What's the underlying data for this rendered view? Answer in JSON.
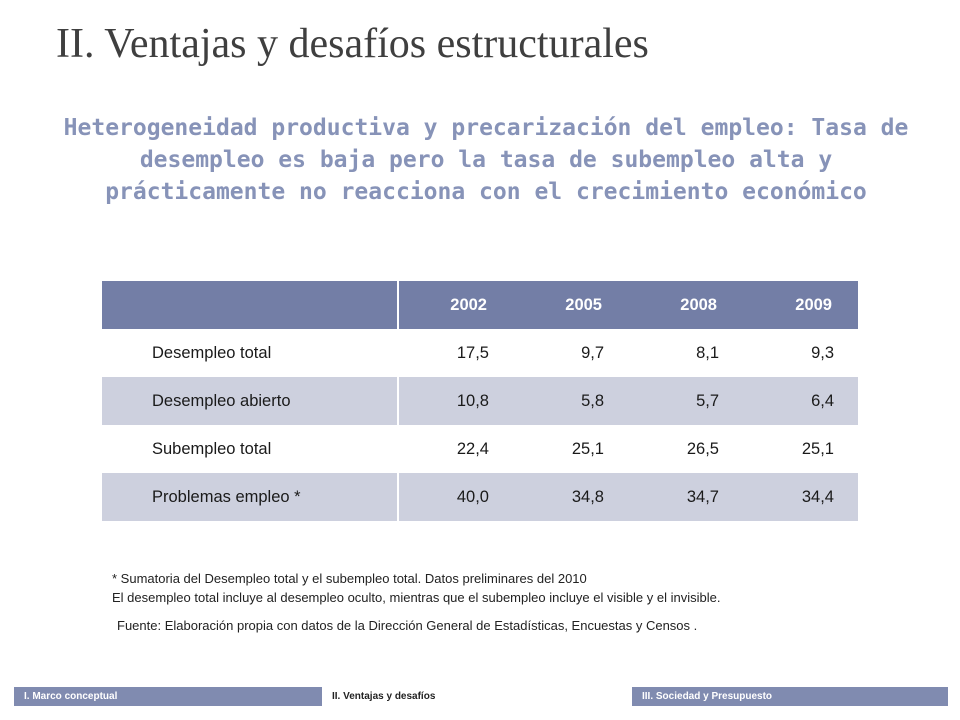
{
  "slide": {
    "title": "II. Ventajas y desafíos estructurales",
    "subtitle": "Heterogeneidad productiva y precarización del empleo: Tasa de desempleo es baja pero la tasa de subempleo alta y prácticamente no reacciona con el crecimiento económico"
  },
  "table": {
    "header": [
      "",
      "2002",
      "2005",
      "2008",
      "2009"
    ],
    "rows": [
      {
        "label": "Desempleo total",
        "values": [
          "17,5",
          "9,7",
          "8,1",
          "9,3"
        ]
      },
      {
        "label": "Desempleo abierto",
        "values": [
          "10,8",
          "5,8",
          "5,7",
          "6,4"
        ]
      },
      {
        "label": "Subempleo total",
        "values": [
          "22,4",
          "25,1",
          "26,5",
          "25,1"
        ]
      },
      {
        "label": "Problemas empleo *",
        "values": [
          "40,0",
          "34,8",
          "34,7",
          "34,4"
        ]
      }
    ]
  },
  "notes": {
    "line1": "* Sumatoria del Desempleo total y el subempleo total. Datos preliminares del 2010",
    "line2": "El desempleo total incluye al desempleo oculto, mientras que el subempleo incluye el visible y el invisible.",
    "source": "Fuente: Elaboración propia con datos de la Dirección General de Estadísticas, Encuestas y Censos ."
  },
  "footer": {
    "sections": [
      "I. Marco conceptual",
      "II. Ventajas y desafíos",
      "III. Sociedad y Presupuesto"
    ]
  },
  "colors": {
    "header_bg": "#737ea6",
    "shaded_row": "#cdd0de",
    "subtitle": "#8793b8",
    "footer_bar": "#808bb0"
  }
}
